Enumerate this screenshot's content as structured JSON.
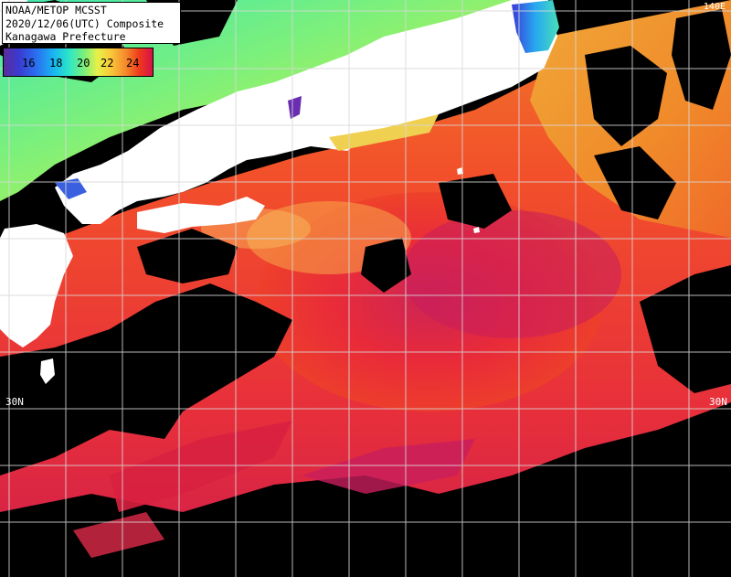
{
  "title": {
    "line1": "NOAA/METOP MCSST",
    "line2": "2020/12/06(UTC) Composite",
    "line3": "Kanagawa Prefecture"
  },
  "legend": {
    "labels": [
      "16",
      "18",
      "20",
      "22",
      "24"
    ],
    "unit": ""
  },
  "latitude_labels": {
    "left": "30N",
    "right": "30N"
  },
  "corner_label": "140E",
  "colors": {
    "land": "#ffffff",
    "no_data": "#000000",
    "grid": "#d8d8d8",
    "sst_24_plus": "#e0204a",
    "sst_22": "#f05a25",
    "sst_20": "#f8b040",
    "sst_18": "#4de0b0",
    "sst_16": "#2a70f0"
  }
}
